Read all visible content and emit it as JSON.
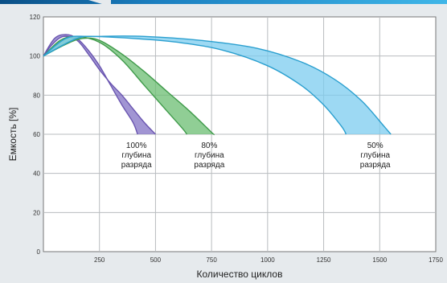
{
  "chart_data": {
    "type": "area",
    "xlabel": "Количество циклов",
    "ylabel": "Емкость [%]",
    "xlim": [
      0,
      1750
    ],
    "ylim": [
      0,
      120
    ],
    "x_ticks": [
      "250",
      "500",
      "750",
      "1000",
      "1250",
      "1500",
      "1750"
    ],
    "x_tick_values": [
      250,
      500,
      750,
      1000,
      1250,
      1500,
      1750
    ],
    "y_ticks": [
      "0",
      "20",
      "40",
      "60",
      "80",
      "100",
      "120"
    ],
    "y_tick_values": [
      0,
      20,
      40,
      60,
      80,
      100,
      120
    ],
    "grid": true,
    "series": [
      {
        "label_lines": [
          "100%",
          "глубина",
          "разряда"
        ],
        "color": "#6a55b0",
        "fill": "#8272c4",
        "upper": [
          [
            0,
            100
          ],
          [
            50,
            109
          ],
          [
            100,
            111
          ],
          [
            150,
            109
          ],
          [
            200,
            103
          ],
          [
            250,
            95
          ],
          [
            300,
            85
          ],
          [
            350,
            75
          ],
          [
            400,
            66
          ],
          [
            420,
            60
          ]
        ],
        "lower": [
          [
            0,
            100
          ],
          [
            40,
            106
          ],
          [
            90,
            110
          ],
          [
            150,
            108
          ],
          [
            200,
            101
          ],
          [
            250,
            93
          ],
          [
            300,
            86
          ],
          [
            350,
            80
          ],
          [
            400,
            73
          ],
          [
            450,
            66
          ],
          [
            500,
            60
          ]
        ]
      },
      {
        "label_lines": [
          "80%",
          "глубина",
          "разряда"
        ],
        "color": "#3f9a4a",
        "fill": "#6bbd72",
        "upper": [
          [
            0,
            100
          ],
          [
            75,
            108
          ],
          [
            150,
            110
          ],
          [
            250,
            107
          ],
          [
            350,
            98
          ],
          [
            450,
            85
          ],
          [
            550,
            72
          ],
          [
            620,
            63
          ],
          [
            640,
            60
          ]
        ],
        "lower": [
          [
            0,
            100
          ],
          [
            100,
            106
          ],
          [
            175,
            109
          ],
          [
            250,
            108
          ],
          [
            350,
            101
          ],
          [
            450,
            92
          ],
          [
            550,
            82
          ],
          [
            650,
            72
          ],
          [
            750,
            61
          ],
          [
            760,
            60
          ]
        ]
      },
      {
        "label_lines": [
          "50%",
          "глубина",
          "разряда"
        ],
        "color": "#2a9fcf",
        "fill": "#7cccef",
        "upper": [
          [
            0,
            100
          ],
          [
            100,
            109
          ],
          [
            200,
            110
          ],
          [
            400,
            109
          ],
          [
            600,
            107
          ],
          [
            800,
            103
          ],
          [
            1000,
            95
          ],
          [
            1150,
            85
          ],
          [
            1250,
            75
          ],
          [
            1330,
            64
          ],
          [
            1350,
            60
          ]
        ],
        "lower": [
          [
            0,
            100
          ],
          [
            150,
            109
          ],
          [
            250,
            110
          ],
          [
            450,
            110
          ],
          [
            700,
            108
          ],
          [
            950,
            104
          ],
          [
            1150,
            97
          ],
          [
            1300,
            88
          ],
          [
            1420,
            77
          ],
          [
            1520,
            64
          ],
          [
            1550,
            60
          ]
        ]
      }
    ]
  }
}
